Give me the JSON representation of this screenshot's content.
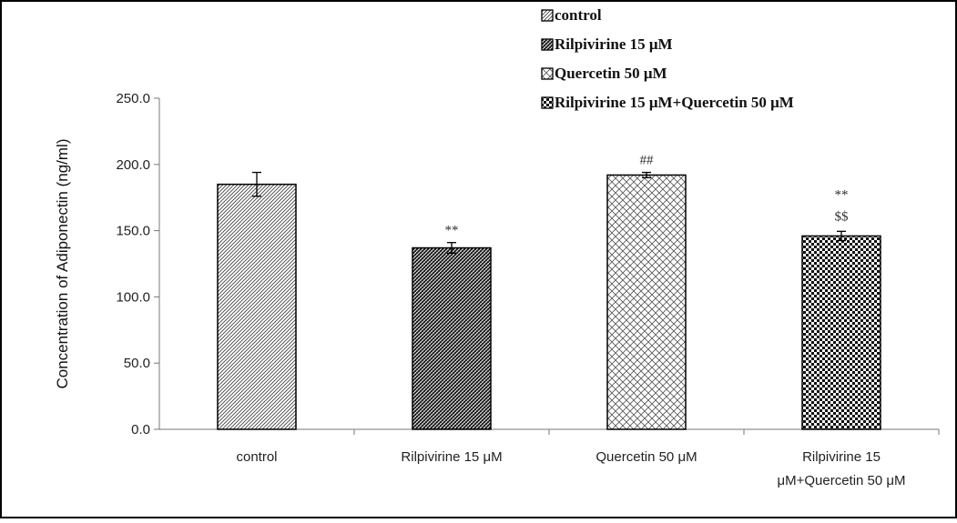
{
  "chart_data": {
    "type": "bar",
    "title": "",
    "xlabel": "",
    "ylabel": "Concentration of Adiponectin (ng/ml)",
    "ylim": [
      0,
      250
    ],
    "yticks": [
      "0.0",
      "50.0",
      "100.0",
      "150.0",
      "200.0",
      "250.0"
    ],
    "grid": false,
    "legend_position": "top-right",
    "categories": [
      {
        "line1": "control",
        "line2": ""
      },
      {
        "line1": "Rilpivirine 15 μM",
        "line2": ""
      },
      {
        "line1": "Quercetin 50 μM",
        "line2": ""
      },
      {
        "line1": "Rilpivirine 15",
        "line2": "μM+Quercetin 50 μM"
      }
    ],
    "values": [
      185,
      137,
      192,
      146
    ],
    "errors": [
      9,
      4,
      2,
      3.5
    ],
    "patterns": [
      "diag-fine",
      "diag-dark",
      "crosshatch",
      "checker"
    ],
    "annotations": [
      {
        "line1": "",
        "line2": ""
      },
      {
        "line1": "**",
        "line2": ""
      },
      {
        "line1": "##",
        "line2": ""
      },
      {
        "line1": "**",
        "line2": "$$"
      }
    ],
    "legend": [
      {
        "label": "control",
        "pattern": "diag-fine"
      },
      {
        "label": "Rilpivirine 15 μM",
        "pattern": "diag-dark"
      },
      {
        "label": "Quercetin 50 μM",
        "pattern": "crosshatch"
      },
      {
        "label": "Rilpivirine 15 μM+Quercetin 50 μM",
        "pattern": "checker"
      }
    ]
  }
}
